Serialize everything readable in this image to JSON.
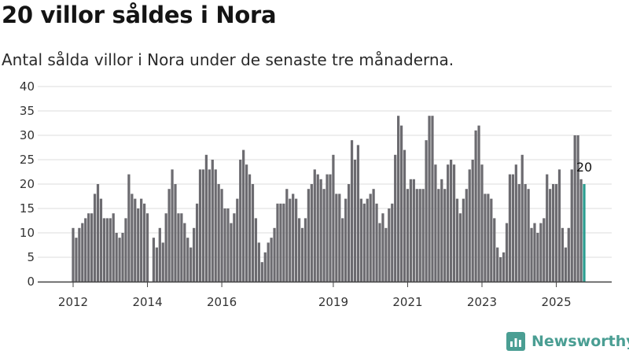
{
  "title": "20 villor såldes i Nora",
  "subtitle": "Antal sålda villor i Nora under de senaste tre månaderna.",
  "brand": {
    "name": "Newsworthy",
    "color": "#4a9e93",
    "icon": "bar-chart-icon"
  },
  "chart_data": {
    "type": "bar",
    "ylim": [
      0,
      40
    ],
    "yticks": [
      "0",
      "5",
      "10",
      "15",
      "20",
      "25",
      "30",
      "35",
      "40"
    ],
    "xticks": [
      {
        "label": "2012",
        "index": 0
      },
      {
        "label": "2014",
        "index": 24
      },
      {
        "label": "2016",
        "index": 48
      },
      {
        "label": "2019",
        "index": 84
      },
      {
        "label": "2021",
        "index": 108
      },
      {
        "label": "2023",
        "index": 132
      },
      {
        "label": "2025",
        "index": 156
      }
    ],
    "values": [
      11,
      9,
      11,
      12,
      13,
      14,
      14,
      18,
      20,
      17,
      13,
      13,
      13,
      14,
      10,
      9,
      10,
      13,
      22,
      18,
      17,
      15,
      17,
      16,
      14,
      0,
      9,
      7,
      11,
      8,
      14,
      19,
      23,
      20,
      14,
      14,
      12,
      9,
      7,
      11,
      16,
      23,
      23,
      26,
      23,
      25,
      23,
      20,
      19,
      15,
      15,
      12,
      14,
      17,
      25,
      27,
      24,
      22,
      20,
      13,
      8,
      4,
      6,
      8,
      9,
      11,
      16,
      16,
      16,
      19,
      17,
      18,
      17,
      13,
      11,
      13,
      19,
      20,
      23,
      22,
      21,
      19,
      22,
      22,
      26,
      18,
      18,
      13,
      17,
      20,
      29,
      25,
      28,
      17,
      16,
      17,
      18,
      19,
      16,
      12,
      14,
      11,
      15,
      16,
      26,
      34,
      32,
      27,
      19,
      21,
      21,
      19,
      19,
      19,
      29,
      34,
      34,
      24,
      19,
      21,
      19,
      24,
      25,
      24,
      17,
      14,
      17,
      19,
      23,
      25,
      31,
      32,
      24,
      18,
      18,
      17,
      13,
      7,
      5,
      6,
      12,
      22,
      22,
      24,
      20,
      26,
      20,
      19,
      11,
      12,
      10,
      12,
      13,
      22,
      19,
      20,
      20,
      23,
      11,
      7,
      11,
      23,
      30,
      30,
      21,
      20
    ],
    "highlight_value": "20",
    "bar_color": "#6c6b70",
    "highlight_color": "#2a9d8f"
  }
}
